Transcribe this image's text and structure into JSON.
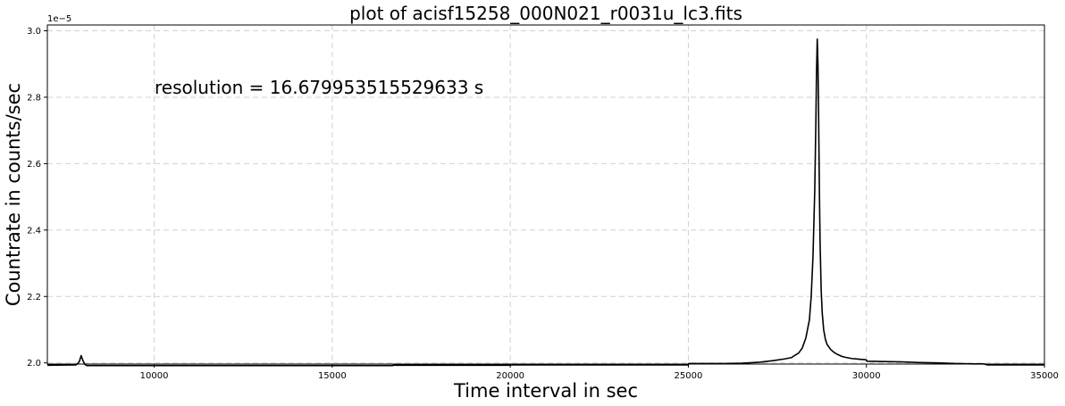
{
  "chart_data": {
    "type": "line",
    "title": "plot of acisf15258_000N021_r0031u_lc3.fits",
    "xlabel": "Time interval in sec",
    "ylabel": "Countrate in counts/sec",
    "y_offset_label": "1e−5",
    "annotation": "resolution = 16.679953515529633 s",
    "xlim": [
      7000,
      35000
    ],
    "ylim": [
      1.9965,
      3.0175
    ],
    "x_ticks": [
      10000,
      15000,
      20000,
      25000,
      30000,
      35000
    ],
    "y_ticks": [
      2.0,
      2.2,
      2.4,
      2.6,
      2.8,
      3.0
    ],
    "grid": true,
    "line_color": "#000000",
    "series": [
      {
        "x": [
          7000,
          7800,
          7850,
          7900,
          7950,
          8000,
          8050,
          8100,
          8200,
          8500,
          12000,
          16700,
          16710,
          20000,
          20010,
          25000,
          25010,
          26000,
          26500,
          27000,
          27400,
          27700,
          27900,
          27950,
          28100,
          28200,
          28300,
          28400,
          28450,
          28500,
          28550,
          28580,
          28600,
          28620,
          28640,
          28660,
          28680,
          28700,
          28730,
          28760,
          28800,
          28850,
          28900,
          29000,
          29100,
          29200,
          29300,
          29400,
          29500,
          29600,
          29700,
          29800,
          29900,
          29950,
          30000,
          30010,
          30500,
          31000,
          31500,
          32000,
          32500,
          33000,
          33300,
          33400,
          33600,
          35000
        ],
        "y": [
          1.993,
          1.994,
          1.997,
          2.005,
          2.022,
          2.007,
          1.996,
          1.992,
          1.992,
          1.992,
          1.992,
          1.992,
          1.993,
          1.993,
          1.994,
          1.994,
          1.998,
          1.998,
          1.999,
          2.002,
          2.007,
          2.012,
          2.016,
          2.02,
          2.03,
          2.045,
          2.075,
          2.13,
          2.2,
          2.32,
          2.52,
          2.72,
          2.88,
          2.975,
          2.9,
          2.72,
          2.52,
          2.36,
          2.22,
          2.15,
          2.1,
          2.07,
          2.055,
          2.04,
          2.031,
          2.025,
          2.02,
          2.017,
          2.015,
          2.013,
          2.012,
          2.011,
          2.01,
          2.01,
          2.009,
          2.005,
          2.004,
          2.003,
          2.001,
          2.0,
          1.998,
          1.997,
          1.997,
          1.994,
          1.994,
          1.994
        ]
      }
    ]
  }
}
